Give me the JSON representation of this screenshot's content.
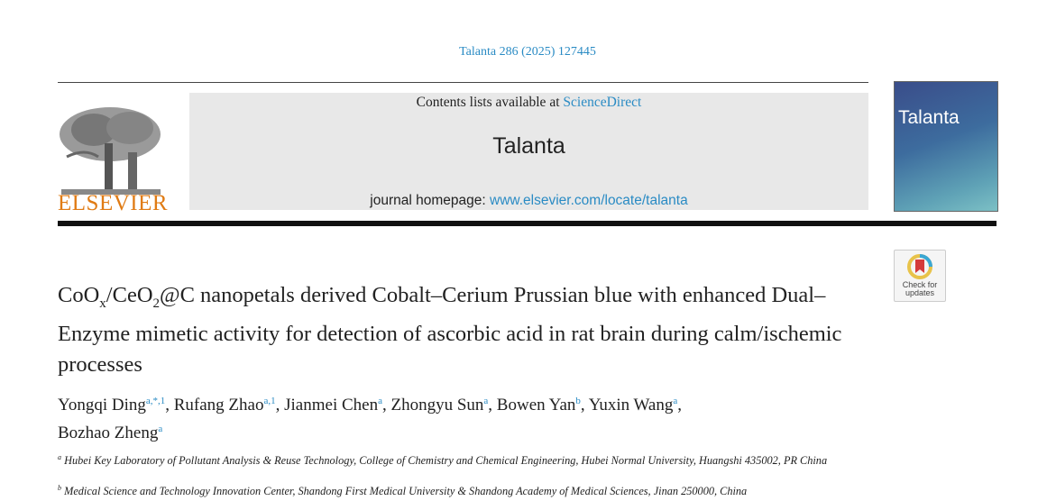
{
  "header": {
    "citation": "Talanta 286 (2025) 127445",
    "contents_prefix": "Contents lists available at ",
    "contents_link": "ScienceDirect",
    "journal": "Talanta",
    "homepage_prefix": "journal homepage: ",
    "homepage_link": "www.elsevier.com/locate/talanta",
    "publisher": "ELSEVIER",
    "cover_title": "Talanta",
    "check_label": "Check for updates"
  },
  "article": {
    "title_parts": [
      "CoO",
      "x",
      "/CeO",
      "2",
      "@C nanopetals derived Cobalt–Cerium Prussian blue with enhanced Dual–Enzyme mimetic activity for detection of ascorbic acid in rat brain during calm/ischemic processes"
    ],
    "authors": [
      {
        "name": "Yongqi Ding",
        "aff": "a,*,1"
      },
      {
        "name": "Rufang Zhao",
        "aff": "a,1"
      },
      {
        "name": "Jianmei Chen",
        "aff": "a"
      },
      {
        "name": "Zhongyu Sun",
        "aff": "a"
      },
      {
        "name": "Bowen Yan",
        "aff": "b"
      },
      {
        "name": "Yuxin Wang",
        "aff": "a"
      },
      {
        "name": "Bozhao Zheng",
        "aff": "a"
      }
    ],
    "affiliations": [
      {
        "mark": "a",
        "text": "Hubei Key Laboratory of Pollutant Analysis & Reuse Technology, College of Chemistry and Chemical Engineering, Hubei Normal University, Huangshi 435002, PR China"
      },
      {
        "mark": "b",
        "text": "Medical Science and Technology Innovation Center, Shandong First Medical University & Shandong Academy of Medical Sciences, Jinan 250000, China"
      }
    ]
  },
  "colors": {
    "link": "#2a8bc4",
    "elsevier": "#e07b14"
  }
}
